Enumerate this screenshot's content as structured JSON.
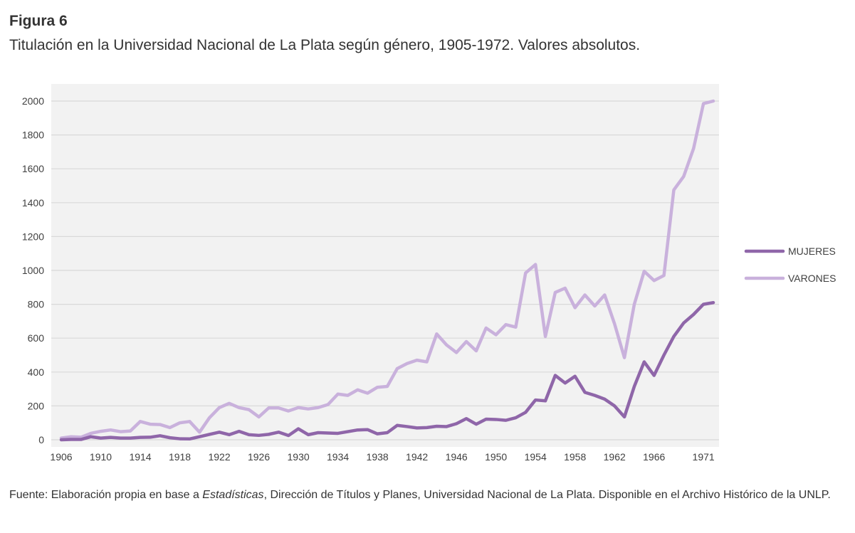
{
  "figure": {
    "label": "Figura 6",
    "title": "Titulación en la Universidad Nacional de La Plata según género, 1905-1972. Valores absolutos.",
    "footnote_pre": "Fuente: Elaboración propia en base a ",
    "footnote_italic": "Estadísticas",
    "footnote_post": ", Dirección de Títulos y Planes, Universidad Nacional de La Plata. Disponible en el Archivo Histórico de la UNLP."
  },
  "chart_data": {
    "type": "line",
    "title": "",
    "xlabel": "",
    "ylabel": "",
    "xlim": [
      1906,
      1972
    ],
    "ylim": [
      0,
      2000
    ],
    "y_ticks": [
      0,
      200,
      400,
      600,
      800,
      1000,
      1200,
      1400,
      1600,
      1800,
      2000
    ],
    "x_ticks": [
      1906,
      1910,
      1914,
      1918,
      1922,
      1926,
      1930,
      1934,
      1938,
      1942,
      1946,
      1950,
      1954,
      1958,
      1962,
      1966,
      1971
    ],
    "grid": true,
    "legend_position": "right",
    "x": [
      1906,
      1907,
      1908,
      1909,
      1910,
      1911,
      1912,
      1913,
      1914,
      1915,
      1916,
      1917,
      1918,
      1919,
      1920,
      1921,
      1922,
      1923,
      1924,
      1925,
      1926,
      1927,
      1928,
      1929,
      1930,
      1931,
      1932,
      1933,
      1934,
      1935,
      1936,
      1937,
      1938,
      1939,
      1940,
      1941,
      1942,
      1943,
      1944,
      1945,
      1946,
      1947,
      1948,
      1949,
      1950,
      1951,
      1952,
      1953,
      1954,
      1955,
      1956,
      1957,
      1958,
      1959,
      1960,
      1961,
      1962,
      1963,
      1964,
      1965,
      1966,
      1967,
      1968,
      1969,
      1970,
      1971,
      1972
    ],
    "series": [
      {
        "name": "MUJERES",
        "color": "#8f66a9",
        "values": [
          0,
          2,
          2,
          18,
          10,
          14,
          10,
          10,
          14,
          15,
          24,
          12,
          6,
          5,
          18,
          32,
          45,
          30,
          50,
          30,
          26,
          32,
          45,
          25,
          65,
          30,
          42,
          40,
          38,
          48,
          58,
          60,
          35,
          42,
          85,
          78,
          70,
          72,
          80,
          78,
          95,
          125,
          92,
          122,
          120,
          115,
          130,
          162,
          235,
          230,
          380,
          335,
          375,
          280,
          262,
          240,
          200,
          135,
          315,
          460,
          380,
          500,
          610,
          690,
          740,
          800,
          810
        ]
      },
      {
        "name": "VARONES",
        "color": "#c9b1dc",
        "values": [
          10,
          18,
          15,
          38,
          50,
          58,
          48,
          52,
          108,
          92,
          90,
          72,
          100,
          108,
          45,
          130,
          190,
          215,
          190,
          178,
          135,
          188,
          188,
          170,
          190,
          182,
          190,
          208,
          270,
          262,
          295,
          275,
          310,
          315,
          420,
          450,
          470,
          460,
          625,
          560,
          515,
          580,
          525,
          660,
          620,
          680,
          665,
          985,
          1035,
          610,
          870,
          895,
          780,
          855,
          790,
          855,
          685,
          485,
          800,
          995,
          940,
          970,
          1475,
          1555,
          1720,
          1985,
          2000
        ]
      }
    ]
  }
}
